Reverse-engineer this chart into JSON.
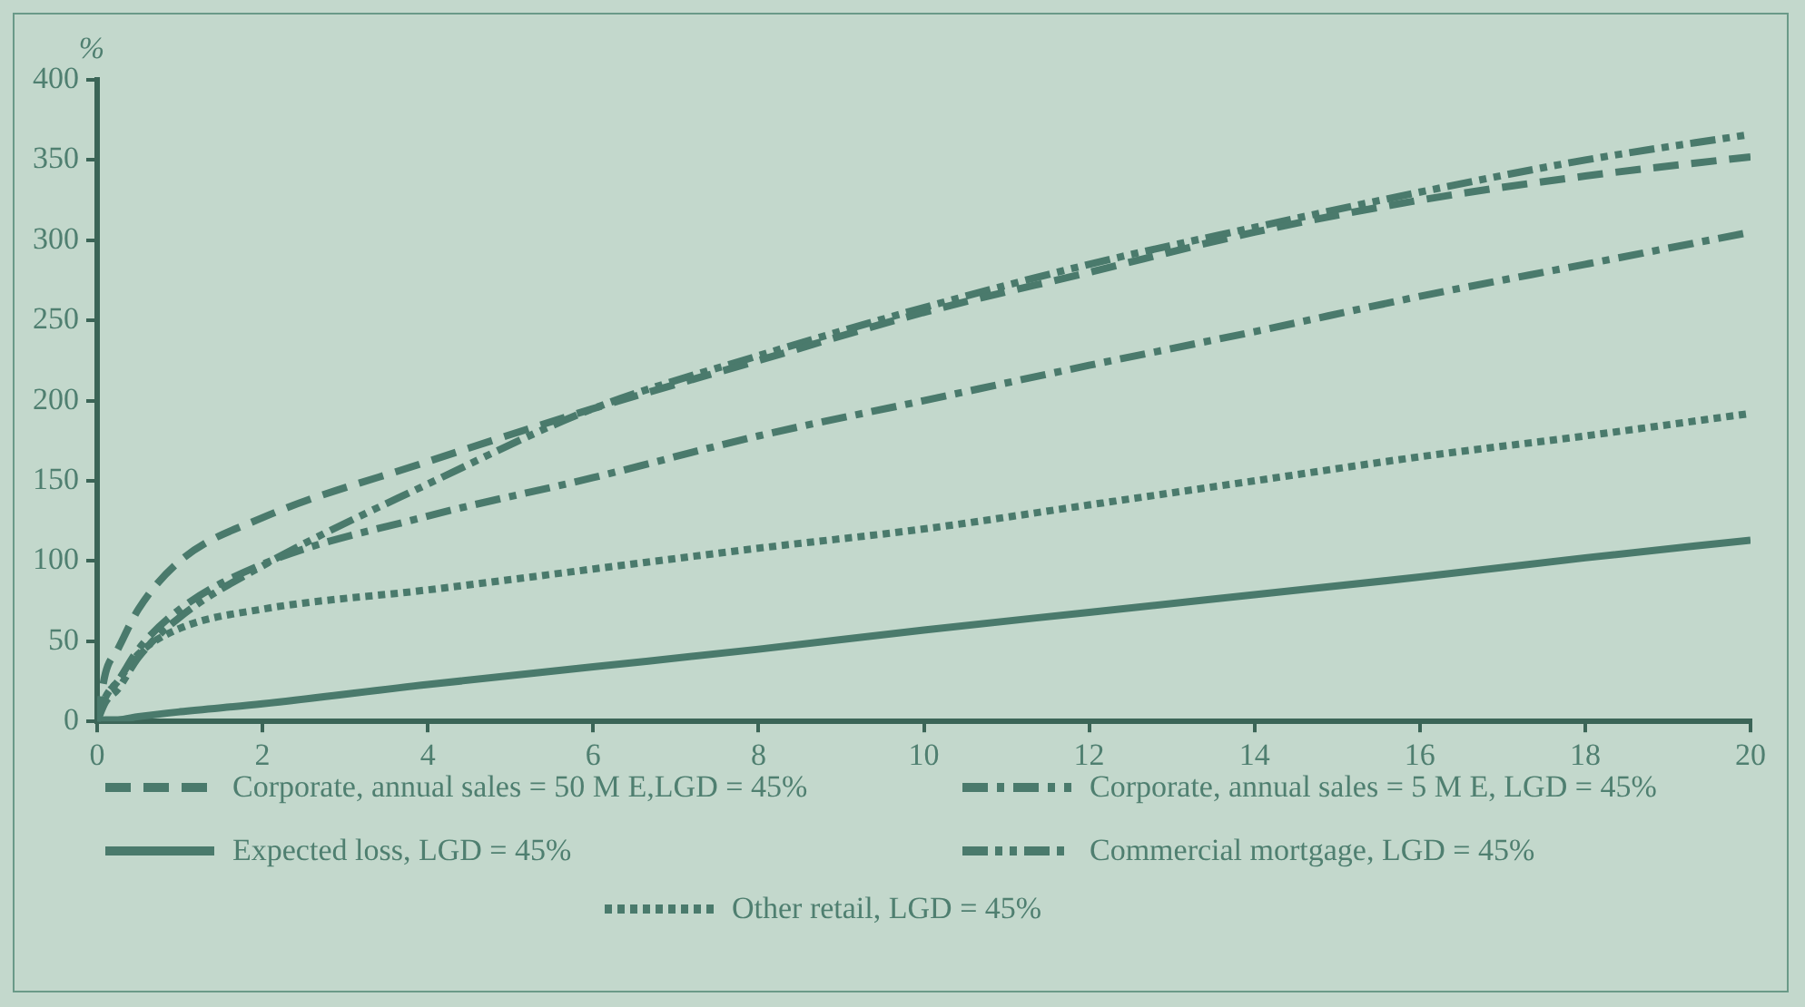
{
  "chart_data": {
    "type": "line",
    "ylabel": "%",
    "xlim": [
      0,
      20
    ],
    "xticks": [
      0,
      2,
      4,
      6,
      8,
      10,
      12,
      14,
      16,
      18,
      20
    ],
    "ylim": [
      0,
      400
    ],
    "yticks": [
      0,
      50,
      100,
      150,
      200,
      250,
      300,
      350,
      400
    ],
    "grid": false,
    "legend": "bottom",
    "marker": "none",
    "x": [
      0,
      0.1,
      0.25,
      0.5,
      1,
      2,
      4,
      6,
      8,
      10,
      12,
      14,
      16,
      18,
      20
    ],
    "series": [
      {
        "name": "Corporate, annual sales = 50 M E,LGD = 45%",
        "color": "#4a7a6c",
        "line_style": "dashed",
        "values": [
          0,
          30,
          45,
          70,
          100,
          127,
          162,
          195,
          225,
          255,
          280,
          305,
          325,
          340,
          352
        ]
      },
      {
        "name": "Corporate, annual sales = 5 M E, LGD = 45%",
        "color": "#4a7a6c",
        "line_style": "dashdot",
        "values": [
          0,
          15,
          25,
          45,
          70,
          98,
          128,
          152,
          178,
          200,
          222,
          243,
          265,
          285,
          305
        ]
      },
      {
        "name": "Expected loss, LGD = 45%",
        "color": "#4a7a6c",
        "line_style": "solid",
        "values": [
          0,
          1,
          1,
          3,
          6,
          11,
          23,
          34,
          45,
          57,
          68,
          79,
          90,
          102,
          113
        ]
      },
      {
        "name": "Commercial mortgage, LGD = 45%",
        "color": "#4a7a6c",
        "line_style": "dashdotdot",
        "values": [
          0,
          12,
          20,
          40,
          65,
          97,
          148,
          195,
          228,
          258,
          285,
          308,
          330,
          350,
          366
        ]
      },
      {
        "name": "Other retail, LGD = 45%",
        "color": "#4a7a6c",
        "line_style": "dotted",
        "values": [
          0,
          15,
          25,
          42,
          58,
          70,
          82,
          95,
          108,
          120,
          135,
          150,
          165,
          178,
          192
        ]
      }
    ]
  }
}
